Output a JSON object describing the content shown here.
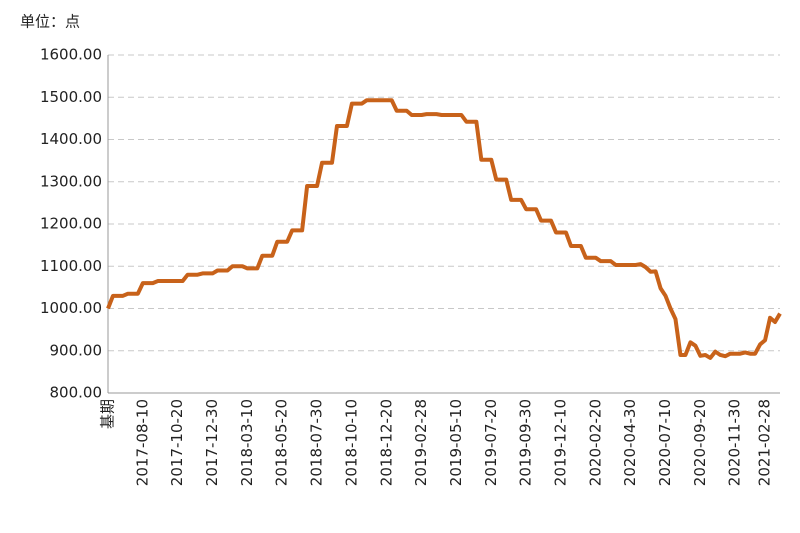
{
  "chart_data": {
    "type": "line",
    "unit": "单位：点",
    "categories": [
      "基期",
      null,
      null,
      null,
      null,
      null,
      null,
      "2017-08-10",
      null,
      null,
      null,
      null,
      null,
      null,
      "2017-10-20",
      null,
      null,
      null,
      null,
      null,
      null,
      "2017-12-30",
      null,
      null,
      null,
      null,
      null,
      null,
      "2018-03-10",
      null,
      null,
      null,
      null,
      null,
      null,
      "2018-05-20",
      null,
      null,
      null,
      null,
      null,
      null,
      "2018-07-30",
      null,
      null,
      null,
      null,
      null,
      null,
      "2018-10-10",
      null,
      null,
      null,
      null,
      null,
      null,
      "2018-12-20",
      null,
      null,
      null,
      null,
      null,
      null,
      "2019-02-28",
      null,
      null,
      null,
      null,
      null,
      null,
      "2019-05-10",
      null,
      null,
      null,
      null,
      null,
      null,
      "2019-07-20",
      null,
      null,
      null,
      null,
      null,
      null,
      "2019-09-30",
      null,
      null,
      null,
      null,
      null,
      null,
      "2019-12-10",
      null,
      null,
      null,
      null,
      null,
      null,
      "2020-02-20",
      null,
      null,
      null,
      null,
      null,
      null,
      "2020-04-30",
      null,
      null,
      null,
      null,
      null,
      null,
      "2020-07-10",
      null,
      null,
      null,
      null,
      null,
      null,
      "2020-09-20",
      null,
      null,
      null,
      null,
      null,
      null,
      "2020-11-30",
      null,
      null,
      null,
      null,
      null,
      "2021-02-28",
      null,
      null,
      null
    ],
    "values": [
      1000,
      1030,
      1030,
      1030,
      1035,
      1035,
      1035,
      1060,
      1060,
      1060,
      1065,
      1065,
      1065,
      1065,
      1065,
      1065,
      1080,
      1080,
      1080,
      1083,
      1083,
      1083,
      1090,
      1090,
      1090,
      1100,
      1100,
      1100,
      1095,
      1095,
      1095,
      1125,
      1125,
      1125,
      1158,
      1158,
      1158,
      1185,
      1185,
      1185,
      1290,
      1290,
      1290,
      1345,
      1345,
      1345,
      1432,
      1432,
      1432,
      1485,
      1485,
      1485,
      1493,
      1493,
      1493,
      1493,
      1493,
      1493,
      1468,
      1468,
      1468,
      1458,
      1458,
      1458,
      1460,
      1460,
      1460,
      1458,
      1458,
      1458,
      1458,
      1458,
      1442,
      1442,
      1442,
      1352,
      1352,
      1352,
      1305,
      1305,
      1305,
      1257,
      1257,
      1257,
      1235,
      1235,
      1235,
      1208,
      1208,
      1208,
      1180,
      1180,
      1180,
      1148,
      1148,
      1148,
      1120,
      1120,
      1120,
      1112,
      1112,
      1112,
      1103,
      1103,
      1103,
      1103,
      1103,
      1105,
      1098,
      1087,
      1088,
      1048,
      1030,
      1000,
      975,
      890,
      890,
      920,
      912,
      888,
      890,
      883,
      898,
      890,
      887,
      893,
      893,
      893,
      896,
      893,
      893,
      915,
      925,
      978,
      968,
      988
    ],
    "color": "#c8621a",
    "ylim": [
      800,
      1600
    ],
    "yticks": [
      {
        "value": 800,
        "label": "800.00"
      },
      {
        "value": 900,
        "label": "900.00"
      },
      {
        "value": 1000,
        "label": "1000.00"
      },
      {
        "value": 1100,
        "label": "1100.00"
      },
      {
        "value": 1200,
        "label": "1200.00"
      },
      {
        "value": 1300,
        "label": "1300.00"
      },
      {
        "value": 1400,
        "label": "1400.00"
      },
      {
        "value": 1500,
        "label": "1500.00"
      },
      {
        "value": 1600,
        "label": "1600.00"
      }
    ],
    "grid": true
  }
}
